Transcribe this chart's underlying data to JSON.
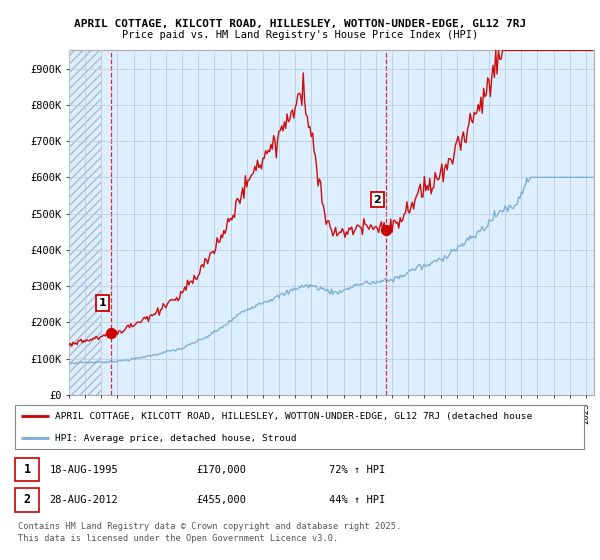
{
  "title_line1": "APRIL COTTAGE, KILCOTT ROAD, HILLESLEY, WOTTON-UNDER-EDGE, GL12 7RJ",
  "title_line2": "Price paid vs. HM Land Registry's House Price Index (HPI)",
  "ylim": [
    0,
    950000
  ],
  "yticks": [
    0,
    100000,
    200000,
    300000,
    400000,
    500000,
    600000,
    700000,
    800000,
    900000
  ],
  "ytick_labels": [
    "£0",
    "£100K",
    "£200K",
    "£300K",
    "£400K",
    "£500K",
    "£600K",
    "£700K",
    "£800K",
    "£900K"
  ],
  "xlim_start": 1993.0,
  "xlim_end": 2025.5,
  "transaction1_year": 1995.63,
  "transaction1_price": 170000,
  "transaction1_label": "1",
  "transaction1_date": "18-AUG-1995",
  "transaction1_hpi": "72% ↑ HPI",
  "transaction2_year": 2012.65,
  "transaction2_price": 455000,
  "transaction2_label": "2",
  "transaction2_date": "28-AUG-2012",
  "transaction2_hpi": "44% ↑ HPI",
  "price_line_color": "#cc0000",
  "hpi_line_color": "#7aadd4",
  "bg_color": "#ddeeff",
  "grid_color": "#bbccdd",
  "legend_label_price": "APRIL COTTAGE, KILCOTT ROAD, HILLESLEY, WOTTON-UNDER-EDGE, GL12 7RJ (detached house",
  "legend_label_hpi": "HPI: Average price, detached house, Stroud",
  "footnote": "Contains HM Land Registry data © Crown copyright and database right 2025.\nThis data is licensed under the Open Government Licence v3.0.",
  "transaction1_price_str": "£170,000",
  "transaction2_price_str": "£455,000"
}
